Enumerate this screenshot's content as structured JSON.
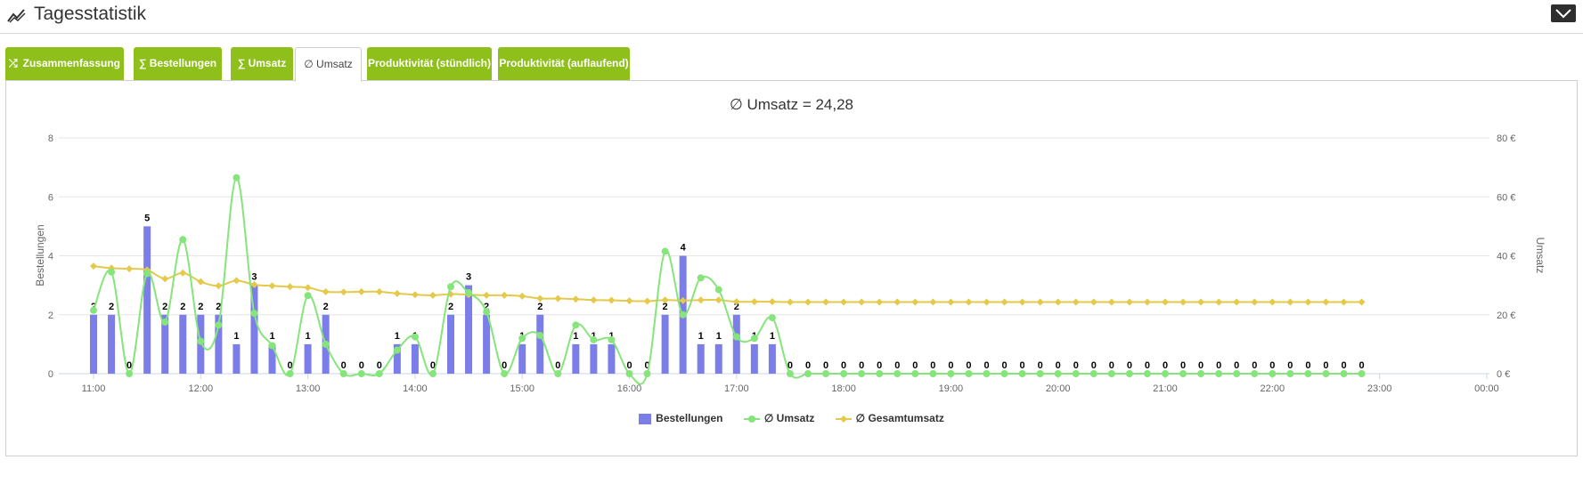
{
  "header": {
    "title": "Tagesstatistik",
    "icon": "line-chart-icon",
    "collapse_icon": "chevron-down-icon"
  },
  "tabs": [
    {
      "label": "Zusammenfassung",
      "icon": "shuffle-icon",
      "icon_glyph": "⤮",
      "active": false
    },
    {
      "label": "∑ Bestellungen",
      "active": false
    },
    {
      "label": "∑ Umsatz",
      "active": false
    },
    {
      "label": "∅ Umsatz",
      "active": true
    },
    {
      "label": "Produktivität (stündlich)",
      "active": false
    },
    {
      "label": "Produktivität (auflaufend)",
      "active": false
    }
  ],
  "colors": {
    "tab": "#8fbf1b",
    "bar": "#7b7ee8",
    "umsatz": "#86e57a",
    "gesamt": "#e4c94a",
    "grid": "#e6e6e6"
  },
  "chart_data": {
    "type": "bar",
    "title": "∅ Umsatz = 24,28",
    "ylabel_left": "Bestellungen",
    "ylabel_right": "Umsatz",
    "ylim_left": [
      0,
      8
    ],
    "ylim_right": [
      0,
      80
    ],
    "yticks_left": [
      "0",
      "2",
      "4",
      "6",
      "8"
    ],
    "yticks_right": [
      "0 €",
      "20 €",
      "40 €",
      "60 €",
      "80 €"
    ],
    "x_start": "11:00",
    "x_end": "00:00",
    "x_step_minutes": 10,
    "xtick_labels": [
      "11:00",
      "12:00",
      "13:00",
      "14:00",
      "15:00",
      "16:00",
      "17:00",
      "18:00",
      "19:00",
      "20:00",
      "21:00",
      "22:00",
      "23:00",
      "00:00"
    ],
    "grid": true,
    "legend_position": "bottom",
    "series": [
      {
        "name": "Bestellungen",
        "kind": "bar",
        "values": [
          2,
          2,
          0,
          5,
          2,
          2,
          2,
          2,
          1,
          3,
          1,
          0,
          1,
          2,
          0,
          0,
          0,
          1,
          1,
          0,
          2,
          3,
          2,
          0,
          1,
          2,
          0,
          1,
          1,
          1,
          0,
          0,
          2,
          4,
          1,
          1,
          2,
          1,
          1,
          0,
          0,
          0,
          0,
          0,
          0,
          0,
          0,
          0,
          0,
          0,
          0,
          0,
          0,
          0,
          0,
          0,
          0,
          0,
          0,
          0,
          0,
          0,
          0,
          0,
          0,
          0,
          0,
          0,
          0,
          0,
          0,
          0
        ]
      },
      {
        "name": "∅ Umsatz",
        "kind": "line",
        "values": [
          21.5,
          34.5,
          0,
          34,
          17.5,
          45.5,
          11,
          16.5,
          66.5,
          20.5,
          9.5,
          0,
          26.5,
          10,
          0,
          0,
          0,
          8,
          12.5,
          0,
          29.5,
          27.5,
          21,
          0,
          12,
          13,
          0,
          16.5,
          11.5,
          11.5,
          0,
          0,
          41.5,
          20,
          32.5,
          28.5,
          12.5,
          12,
          19,
          0,
          0,
          0,
          0,
          0,
          0,
          0,
          0,
          0,
          0,
          0,
          0,
          0,
          0,
          0,
          0,
          0,
          0,
          0,
          0,
          0,
          0,
          0,
          0,
          0,
          0,
          0,
          0,
          0,
          0,
          0,
          0,
          0
        ]
      },
      {
        "name": "∅ Gesamtumsatz",
        "kind": "line",
        "values": [
          36.5,
          35.8,
          35.6,
          35.2,
          32.2,
          34.2,
          31.2,
          29.8,
          31.6,
          30.2,
          29.8,
          29.5,
          29.2,
          27.8,
          27.7,
          27.8,
          27.8,
          27.2,
          26.8,
          26.6,
          27,
          26.8,
          26.6,
          26.6,
          26.3,
          25.5,
          25.5,
          25.3,
          25,
          24.9,
          24.7,
          24.6,
          25,
          24.8,
          25,
          25,
          24.4,
          24.4,
          24.4,
          24.3,
          24.3,
          24.3,
          24.3,
          24.3,
          24.3,
          24.3,
          24.3,
          24.3,
          24.3,
          24.3,
          24.3,
          24.3,
          24.3,
          24.3,
          24.3,
          24.3,
          24.3,
          24.3,
          24.3,
          24.3,
          24.3,
          24.3,
          24.3,
          24.3,
          24.3,
          24.3,
          24.3,
          24.3,
          24.3,
          24.3,
          24.3,
          24.3
        ]
      }
    ]
  }
}
